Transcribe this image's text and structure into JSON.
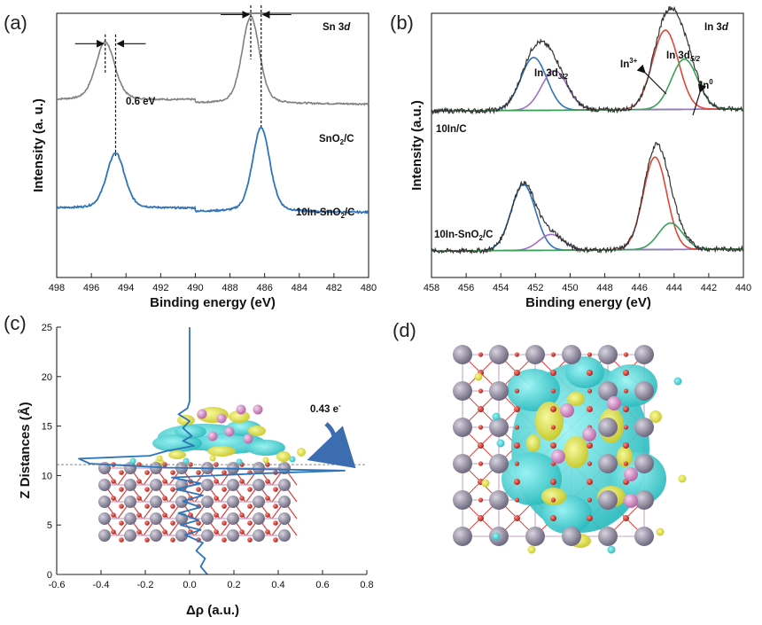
{
  "panels": {
    "a": "(a)",
    "b": "(b)",
    "c": "(c)",
    "d": "(d)"
  },
  "colors": {
    "gray": "#808080",
    "blue": "#2f73b8",
    "red": "#e0463a",
    "green": "#3aa05a",
    "purple": "#a070c8",
    "olive": "#c8b000",
    "black": "#333333",
    "cyan_iso": "#33d6d6",
    "yellow_iso": "#e8e630",
    "sn_atom": "#9a94a8",
    "o_atom": "#d8342c",
    "in_atom": "#d88cc8"
  },
  "chart_data": [
    {
      "panel": "a",
      "type": "line",
      "xlabel": "Binding energy (eV)",
      "ylabel": "Intensity (a. u.)",
      "xlim": [
        498,
        480
      ],
      "xticks": [
        498,
        496,
        494,
        492,
        490,
        488,
        486,
        484,
        482,
        480
      ],
      "element_label": "Sn 3d",
      "shift_label": "0.6 eV",
      "series": [
        {
          "name": "SnO2/C",
          "color": "#808080",
          "baseline": 0.66,
          "peaks": [
            {
              "x": 495.2,
              "h": 0.22,
              "w": 0.55
            },
            {
              "x": 486.8,
              "h": 0.33,
              "w": 0.5
            }
          ]
        },
        {
          "name": "10In-SnO2/C",
          "color": "#2f73b8",
          "baseline": 0.25,
          "peaks": [
            {
              "x": 494.6,
              "h": 0.21,
              "w": 0.52
            },
            {
              "x": 486.2,
              "h": 0.32,
              "w": 0.5
            }
          ]
        }
      ],
      "curve_labels": {
        "top": "SnO",
        "top_sub": "2",
        "top_tail": "/C",
        "bottom": "10In-SnO",
        "bottom_sub": "2",
        "bottom_tail": "/C"
      }
    },
    {
      "panel": "b",
      "type": "line",
      "xlabel": "Binding energy (eV)",
      "ylabel": "Intensity (a.u.)",
      "xlim": [
        458,
        440
      ],
      "xticks": [
        458,
        456,
        454,
        452,
        450,
        448,
        446,
        444,
        442,
        440
      ],
      "element_label": "In 3d",
      "peak_labels": {
        "in32": "In 3d",
        "in32_sub": "3/2",
        "in52": "In 3d",
        "in52_sub": "5/2",
        "in3": "In",
        "in3_sup": "3+",
        "in0": "In",
        "in0_sup": "0"
      },
      "samples": [
        {
          "name": "10In/C",
          "baseline": 0.63,
          "components": [
            {
              "color": "#2f73b8",
              "x": 452.1,
              "h": 0.2,
              "w": 0.75
            },
            {
              "color": "#a070c8",
              "x": 450.9,
              "h": 0.15,
              "w": 0.75
            },
            {
              "color": "#e0463a",
              "x": 444.5,
              "h": 0.3,
              "w": 0.75
            },
            {
              "color": "#3aa05a",
              "x": 443.4,
              "h": 0.19,
              "w": 0.75
            }
          ]
        },
        {
          "name": "10In-SnO2/C",
          "baseline": 0.1,
          "components": [
            {
              "color": "#2f73b8",
              "x": 452.7,
              "h": 0.25,
              "w": 0.7
            },
            {
              "color": "#a070c8",
              "x": 451.1,
              "h": 0.06,
              "w": 0.7
            },
            {
              "color": "#e0463a",
              "x": 445.1,
              "h": 0.35,
              "w": 0.68
            },
            {
              "color": "#3aa05a",
              "x": 444.2,
              "h": 0.1,
              "w": 0.7
            }
          ]
        }
      ],
      "sample_labels": {
        "top": "10In/C",
        "bottom": "10In-SnO",
        "bottom_sub": "2",
        "bottom_tail": "/C"
      }
    },
    {
      "panel": "c",
      "type": "line",
      "xlabel": "Δρ (a.u.)",
      "ylabel": "Z Distances (Å)",
      "xlim": [
        -0.6,
        0.8
      ],
      "ylim": [
        0,
        25
      ],
      "xticks": [
        -0.6,
        -0.4,
        -0.2,
        0.0,
        0.2,
        0.4,
        0.6,
        0.8
      ],
      "yticks": [
        0,
        5,
        10,
        15,
        20,
        25
      ],
      "interface_z": 11.1,
      "transfer_label": "0.43 e",
      "transfer_sup": "-",
      "profile": [
        [
          0,
          0.08
        ],
        [
          0.8,
          0.05
        ],
        [
          1.6,
          0.07
        ],
        [
          2.4,
          0.03
        ],
        [
          3.2,
          0.06
        ],
        [
          4.0,
          -0.02
        ],
        [
          4.5,
          0.05
        ],
        [
          5.0,
          -0.04
        ],
        [
          5.5,
          0.04
        ],
        [
          6.2,
          -0.05
        ],
        [
          6.8,
          0.05
        ],
        [
          7.4,
          -0.03
        ],
        [
          8.0,
          0.06
        ],
        [
          8.6,
          -0.06
        ],
        [
          9.2,
          0.05
        ],
        [
          9.8,
          -0.08
        ],
        [
          10.2,
          0.3
        ],
        [
          10.5,
          0.7
        ],
        [
          10.8,
          -0.1
        ],
        [
          11.2,
          -0.45
        ],
        [
          11.7,
          -0.5
        ],
        [
          12.0,
          -0.18
        ],
        [
          12.5,
          -0.1
        ],
        [
          13.0,
          0.02
        ],
        [
          13.5,
          -0.03
        ],
        [
          14.0,
          0.01
        ],
        [
          14.8,
          -0.03
        ],
        [
          15.5,
          0.0
        ],
        [
          16.2,
          -0.05
        ],
        [
          16.8,
          -0.01
        ],
        [
          17.5,
          0.0
        ],
        [
          18.5,
          0.0
        ],
        [
          20.0,
          0.0
        ],
        [
          22.0,
          0.0
        ],
        [
          25.0,
          0.0
        ]
      ]
    }
  ]
}
